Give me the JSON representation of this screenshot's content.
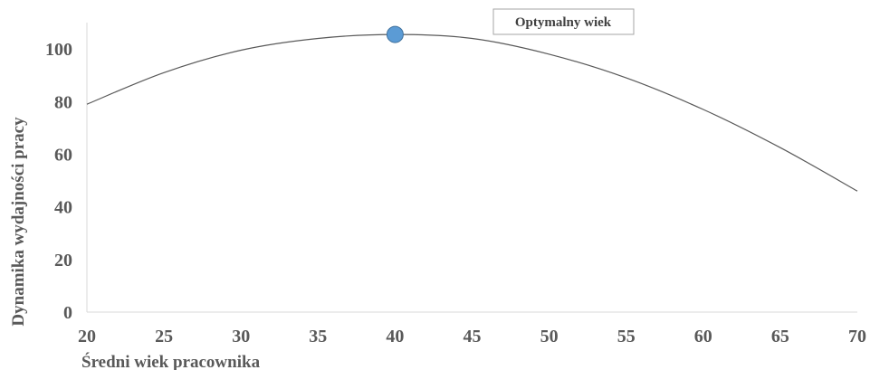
{
  "chart_data": {
    "type": "line",
    "xlabel": "Średni wiek pracownika",
    "ylabel": "Dynamika wydajności pracy",
    "xlim": [
      20,
      70
    ],
    "ylim": [
      0,
      110
    ],
    "x_ticks": [
      20,
      25,
      30,
      35,
      40,
      45,
      50,
      55,
      60,
      65,
      70
    ],
    "y_ticks": [
      0,
      20,
      40,
      60,
      80,
      100
    ],
    "x_tick_labels": [
      "20",
      "25",
      "30",
      "35",
      "40",
      "45",
      "50",
      "55",
      "60",
      "65",
      "70"
    ],
    "y_tick_labels": [
      "0",
      "20",
      "40",
      "60",
      "80",
      "100"
    ],
    "grid": false,
    "series": [
      {
        "x": [
          20,
          25,
          30,
          35,
          40,
          45,
          50,
          55,
          60,
          65,
          70
        ],
        "values": [
          79,
          91,
          99.5,
          104,
          105.5,
          104,
          98,
          89,
          77,
          62.5,
          46
        ],
        "color": "#595959"
      }
    ],
    "annotations": [
      {
        "x": 40,
        "y": 105.5,
        "marker": "circle",
        "color": "#5b9bd5"
      }
    ],
    "legend": {
      "label": "Optymalny wiek",
      "placement": "top-right"
    }
  }
}
